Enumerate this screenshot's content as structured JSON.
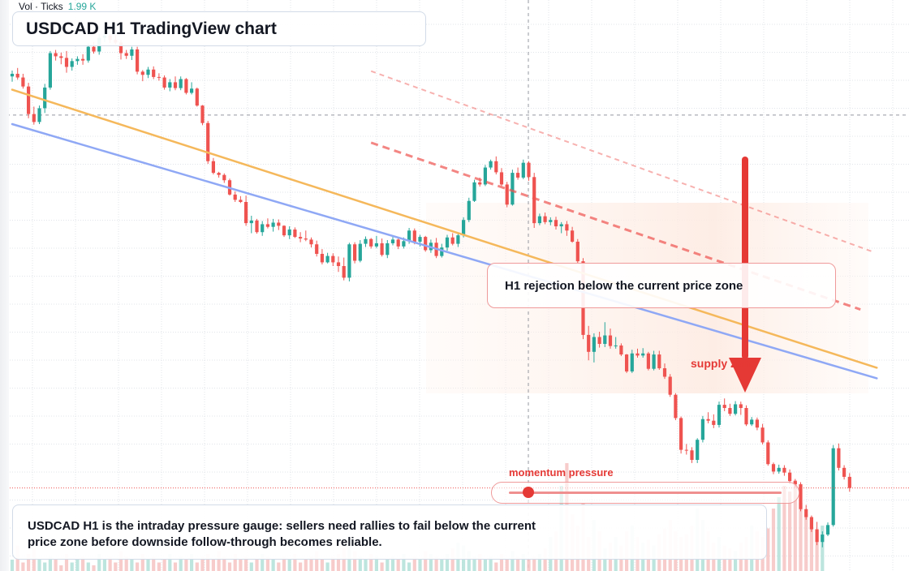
{
  "chart_data": {
    "type": "candlestick",
    "title": "USDCAD H1 TradingView chart",
    "symbol": "USDCAD",
    "timeframe": "H1",
    "volume_legend": {
      "label": "Vol · Ticks",
      "value": "1.99 K"
    },
    "price_range": [
      0,
      100
    ],
    "grid": true,
    "candles": [
      [
        92.0,
        93.1,
        91.0,
        92.5
      ],
      [
        92.5,
        93.6,
        91.4,
        91.8
      ],
      [
        91.8,
        92.5,
        89.7,
        90.1
      ],
      [
        90.1,
        90.8,
        84.1,
        84.9
      ],
      [
        84.9,
        86.3,
        82.9,
        83.4
      ],
      [
        83.4,
        86.5,
        83.0,
        86.0
      ],
      [
        86.0,
        90.6,
        85.1,
        89.9
      ],
      [
        89.9,
        96.8,
        89.5,
        96.4
      ],
      [
        96.4,
        97.0,
        95.0,
        95.8
      ],
      [
        95.8,
        96.5,
        94.3,
        95.5
      ],
      [
        95.5,
        96.8,
        92.7,
        93.8
      ],
      [
        93.8,
        95.4,
        93.1,
        94.9
      ],
      [
        94.9,
        95.8,
        94.2,
        95.3
      ],
      [
        95.3,
        96.2,
        94.2,
        95.0
      ],
      [
        95.0,
        98.2,
        94.6,
        97.6
      ],
      [
        97.6,
        98.5,
        96.3,
        96.7
      ],
      [
        96.7,
        100.0,
        96.1,
        99.3
      ],
      [
        99.3,
        100.0,
        98.5,
        99.7
      ],
      [
        99.7,
        100.0,
        98.3,
        98.9
      ],
      [
        98.9,
        99.8,
        98.0,
        98.4
      ],
      [
        98.4,
        98.9,
        95.2,
        96.4
      ],
      [
        96.4,
        97.0,
        95.3,
        95.9
      ],
      [
        95.9,
        97.6,
        95.1,
        97.1
      ],
      [
        97.1,
        97.6,
        92.4,
        92.9
      ],
      [
        92.9,
        93.2,
        91.1,
        92.3
      ],
      [
        92.3,
        93.8,
        91.7,
        93.3
      ],
      [
        93.3,
        93.9,
        91.5,
        91.9
      ],
      [
        91.9,
        92.6,
        91.2,
        91.8
      ],
      [
        91.8,
        92.2,
        89.5,
        89.9
      ],
      [
        89.9,
        91.5,
        89.2,
        90.9
      ],
      [
        90.9,
        92.0,
        89.4,
        89.8
      ],
      [
        89.8,
        92.0,
        89.4,
        91.5
      ],
      [
        91.5,
        91.7,
        88.6,
        88.9
      ],
      [
        88.9,
        90.9,
        88.6,
        89.7
      ],
      [
        89.7,
        89.9,
        86.3,
        86.5
      ],
      [
        86.5,
        86.6,
        82.8,
        83.2
      ],
      [
        83.2,
        83.6,
        75.5,
        76.0
      ],
      [
        76.0,
        76.6,
        73.5,
        73.8
      ],
      [
        73.8,
        74.0,
        72.9,
        73.4
      ],
      [
        73.4,
        73.7,
        71.9,
        72.4
      ],
      [
        72.4,
        72.7,
        69.5,
        69.7
      ],
      [
        69.7,
        70.3,
        68.3,
        68.7
      ],
      [
        68.7,
        69.4,
        68.1,
        68.3
      ],
      [
        68.3,
        69.5,
        63.8,
        64.3
      ],
      [
        64.3,
        65.7,
        62.4,
        64.8
      ],
      [
        64.8,
        65.1,
        62.3,
        62.6
      ],
      [
        62.6,
        64.7,
        61.9,
        64.1
      ],
      [
        64.1,
        65.2,
        63.3,
        63.6
      ],
      [
        63.6,
        65.1,
        62.7,
        64.4
      ],
      [
        64.4,
        65.0,
        63.0,
        63.8
      ],
      [
        63.8,
        63.9,
        61.7,
        62.0
      ],
      [
        62.0,
        63.7,
        61.3,
        63.1
      ],
      [
        63.1,
        63.5,
        61.5,
        61.7
      ],
      [
        61.7,
        62.6,
        60.7,
        61.4
      ],
      [
        61.4,
        62.9,
        60.9,
        61.2
      ],
      [
        61.2,
        61.6,
        59.7,
        60.3
      ],
      [
        60.3,
        61.0,
        58.0,
        58.5
      ],
      [
        58.5,
        59.4,
        56.5,
        56.9
      ],
      [
        56.9,
        58.7,
        56.7,
        58.1
      ],
      [
        58.1,
        58.6,
        56.2,
        56.9
      ],
      [
        56.9,
        58.0,
        55.1,
        56.2
      ],
      [
        56.2,
        57.8,
        53.5,
        54.0
      ],
      [
        54.0,
        60.6,
        53.3,
        60.3
      ],
      [
        60.3,
        60.7,
        56.7,
        57.2
      ],
      [
        57.2,
        61.1,
        56.9,
        60.4
      ],
      [
        60.4,
        61.8,
        59.8,
        61.3
      ],
      [
        61.3,
        61.5,
        59.5,
        59.9
      ],
      [
        59.9,
        61.9,
        59.6,
        60.5
      ],
      [
        60.5,
        61.4,
        58.0,
        58.3
      ],
      [
        58.3,
        61.1,
        57.7,
        60.5
      ],
      [
        60.5,
        61.7,
        60.1,
        61.2
      ],
      [
        61.2,
        61.6,
        59.4,
        59.9
      ],
      [
        59.9,
        61.6,
        59.5,
        60.9
      ],
      [
        60.9,
        63.4,
        60.4,
        62.9
      ],
      [
        62.9,
        63.3,
        60.3,
        60.8
      ],
      [
        60.8,
        62.1,
        59.9,
        61.7
      ],
      [
        61.7,
        61.9,
        58.9,
        59.2
      ],
      [
        59.2,
        61.2,
        58.7,
        60.6
      ],
      [
        60.6,
        61.5,
        57.7,
        58.1
      ],
      [
        58.1,
        60.4,
        57.8,
        59.7
      ],
      [
        59.7,
        62.1,
        59.1,
        61.6
      ],
      [
        61.6,
        62.4,
        60.1,
        60.4
      ],
      [
        60.4,
        62.4,
        59.8,
        62.0
      ],
      [
        62.0,
        65.4,
        61.6,
        64.9
      ],
      [
        64.9,
        69.1,
        64.5,
        68.5
      ],
      [
        68.5,
        72.5,
        68.3,
        72.0
      ],
      [
        72.0,
        72.9,
        71.2,
        71.6
      ],
      [
        71.6,
        75.3,
        71.3,
        74.8
      ],
      [
        74.8,
        76.3,
        74.4,
        76.0
      ],
      [
        76.0,
        76.9,
        73.5,
        73.9
      ],
      [
        73.9,
        74.7,
        71.3,
        71.6
      ],
      [
        71.6,
        72.1,
        67.3,
        67.8
      ],
      [
        67.8,
        74.4,
        67.6,
        73.8
      ],
      [
        73.8,
        74.8,
        72.5,
        72.9
      ],
      [
        72.9,
        76.3,
        72.6,
        75.7
      ],
      [
        75.7,
        76.0,
        72.3,
        73.0
      ],
      [
        73.0,
        73.8,
        63.4,
        64.3
      ],
      [
        64.3,
        66.1,
        63.9,
        65.6
      ],
      [
        65.6,
        66.3,
        64.1,
        64.5
      ],
      [
        64.5,
        65.4,
        63.9,
        64.9
      ],
      [
        64.9,
        65.5,
        63.1,
        63.7
      ],
      [
        63.7,
        64.5,
        62.4,
        64.1
      ],
      [
        64.1,
        64.7,
        61.9,
        62.9
      ],
      [
        62.9,
        63.6,
        60.6,
        60.8
      ],
      [
        60.8,
        61.3,
        56.7,
        57.1
      ],
      [
        57.1,
        57.7,
        42.4,
        43.2
      ],
      [
        43.2,
        44.9,
        38.4,
        40.0
      ],
      [
        40.0,
        43.5,
        38.0,
        42.8
      ],
      [
        42.8,
        43.8,
        40.8,
        41.5
      ],
      [
        41.5,
        45.6,
        40.9,
        43.1
      ],
      [
        43.1,
        44.4,
        40.6,
        41.1
      ],
      [
        41.1,
        42.8,
        40.6,
        41.2
      ],
      [
        41.2,
        41.6,
        39.2,
        39.5
      ],
      [
        39.5,
        39.6,
        36.0,
        36.3
      ],
      [
        36.3,
        40.4,
        36.0,
        39.7
      ],
      [
        39.7,
        40.6,
        38.9,
        39.3
      ],
      [
        39.3,
        40.7,
        38.9,
        39.7
      ],
      [
        39.7,
        40.0,
        36.5,
        36.8
      ],
      [
        36.8,
        40.2,
        36.5,
        39.5
      ],
      [
        39.5,
        40.2,
        36.6,
        36.9
      ],
      [
        36.9,
        37.8,
        34.9,
        35.3
      ],
      [
        35.3,
        35.8,
        31.5,
        31.9
      ],
      [
        31.9,
        32.2,
        27.1,
        27.5
      ],
      [
        27.5,
        27.8,
        20.8,
        21.5
      ],
      [
        21.5,
        22.6,
        20.6,
        21.4
      ],
      [
        21.4,
        22.0,
        19.0,
        19.6
      ],
      [
        19.6,
        23.7,
        19.0,
        23.4
      ],
      [
        23.4,
        27.9,
        22.9,
        27.3
      ],
      [
        27.3,
        28.6,
        26.5,
        27.0
      ],
      [
        27.0,
        28.2,
        25.6,
        26.2
      ],
      [
        26.2,
        30.6,
        25.7,
        30.0
      ],
      [
        30.0,
        31.2,
        28.8,
        29.4
      ],
      [
        29.4,
        30.2,
        27.9,
        28.3
      ],
      [
        28.3,
        30.7,
        28.0,
        30.1
      ],
      [
        30.1,
        30.6,
        28.1,
        29.4
      ],
      [
        29.4,
        29.9,
        26.0,
        26.3
      ],
      [
        26.3,
        27.7,
        26.0,
        27.2
      ],
      [
        27.2,
        27.6,
        25.2,
        25.7
      ],
      [
        25.7,
        26.4,
        22.5,
        22.9
      ],
      [
        22.9,
        23.3,
        18.5,
        18.8
      ],
      [
        18.8,
        19.1,
        16.9,
        17.4
      ],
      [
        17.4,
        18.7,
        17.0,
        18.1
      ],
      [
        18.1,
        18.6,
        16.6,
        17.2
      ],
      [
        17.2,
        17.8,
        15.1,
        15.6
      ],
      [
        15.6,
        16.0,
        14.4,
        15.0
      ],
      [
        15.0,
        15.4,
        9.9,
        10.3
      ],
      [
        10.3,
        11.1,
        8.3,
        8.8
      ],
      [
        8.8,
        9.1,
        6.0,
        6.5
      ],
      [
        6.5,
        7.9,
        3.5,
        4.1
      ],
      [
        4.1,
        6.1,
        3.1,
        5.5
      ],
      [
        5.5,
        7.8,
        5.2,
        7.3
      ],
      [
        7.3,
        22.4,
        7.0,
        21.8
      ],
      [
        21.8,
        22.7,
        17.6,
        18.1
      ],
      [
        18.1,
        18.6,
        15.9,
        16.4
      ],
      [
        16.4,
        17.1,
        13.6,
        14.3
      ]
    ],
    "volume": [
      4,
      9,
      3,
      6,
      8,
      4,
      3,
      5,
      4,
      2,
      6,
      3,
      4,
      5,
      3,
      2,
      6,
      4,
      5,
      3,
      7,
      5,
      4,
      3,
      6,
      4,
      5,
      3,
      4,
      6,
      3,
      5,
      4,
      6,
      3,
      5,
      6,
      4,
      7,
      5,
      3,
      6,
      4,
      5,
      3,
      4,
      6,
      5,
      4,
      3,
      5,
      4,
      6,
      3,
      4,
      5,
      7,
      4,
      3,
      5,
      6,
      8,
      10,
      7,
      5,
      4,
      6,
      5,
      3,
      4,
      5,
      4,
      6,
      3,
      5,
      4,
      7,
      6,
      5,
      4,
      6,
      8,
      10,
      9,
      7,
      5,
      6,
      4,
      5,
      3,
      6,
      4,
      7,
      5,
      6,
      4,
      5,
      6,
      8,
      12,
      14,
      30,
      38,
      20,
      16,
      24,
      12,
      18,
      14,
      8,
      10,
      12,
      9,
      14,
      16,
      12,
      10,
      11,
      9,
      13,
      15,
      18,
      14,
      12,
      13,
      16,
      22,
      18,
      14,
      10,
      12,
      9,
      8,
      7,
      10,
      12,
      16,
      14,
      12,
      15,
      22,
      26,
      30,
      28,
      32,
      24,
      20,
      18,
      14,
      16
    ],
    "trendlines": [
      {
        "color": "#f5b85b",
        "from": [
          0,
          89.5
        ],
        "to": [
          159,
          37.0
        ]
      },
      {
        "color": "#8fa8f5",
        "from": [
          0,
          83.0
        ],
        "to": [
          159,
          35.0
        ]
      }
    ],
    "channel_lines": [
      {
        "from": [
          66,
          93.0
        ],
        "to": [
          158,
          59.0
        ]
      },
      {
        "from": [
          66,
          79.5
        ],
        "to": [
          156,
          48.0
        ]
      }
    ],
    "current_price": 84.7,
    "annotations": {
      "rejection_callout": "H1 rejection below the current price zone",
      "supply_label": "supply zone",
      "momentum_label": "momentum pressure",
      "momentum_level": 0.07,
      "summary": "USDCAD H1 is the intraday pressure gauge: sellers need rallies to fail below the current price zone before downside follow-through becomes reliable."
    }
  },
  "colors": {
    "bull": "#26a69a",
    "bear": "#ef5350",
    "bull_volume": "#b2e0d8",
    "bear_volume": "#f6c3c2",
    "arrow": "#e53935",
    "supply_zone": "#fde8de",
    "grid": "#e1e4ea"
  }
}
